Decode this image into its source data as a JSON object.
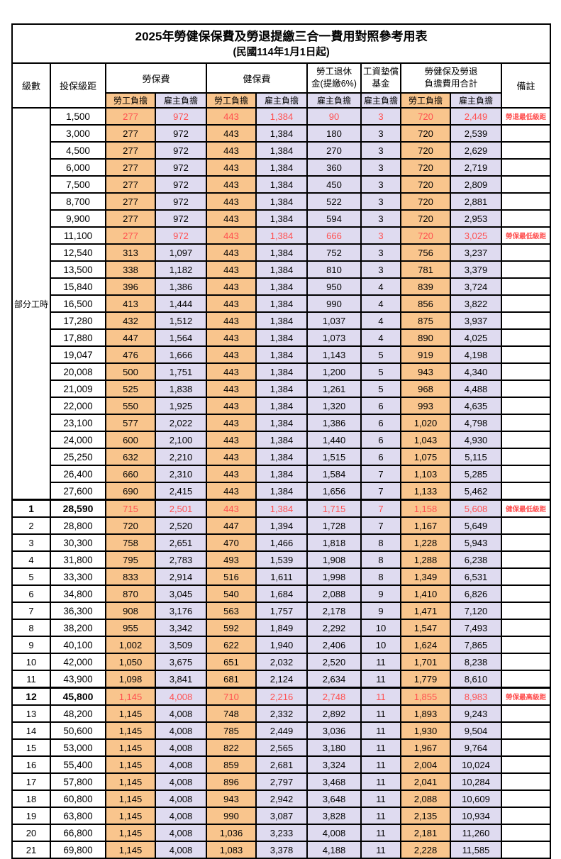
{
  "title": "2025年勞健保保費及勞退提繳三合一費用對照參考用表",
  "subtitle": "(民國114年1月1日起)",
  "colors": {
    "employee_bg": "#F9C58D",
    "employer_bg": "#DFDBF0",
    "highlight_red": "#FF5050",
    "border": "#000000"
  },
  "table": {
    "headers": {
      "level": "級數",
      "salary": "投保級距",
      "labor": "勞保費",
      "health": "健保費",
      "pension": "勞工退休\n金(提繳6%)",
      "wage_fund": "工資墊償\n基金",
      "total": "勞健保及勞退\n負擔費用合計",
      "note": "備註",
      "employee": "勞工負擔",
      "employer": "雇主負擔"
    },
    "part_time_label": "部分工時",
    "part_time_span": 23,
    "rows": [
      {
        "level": "",
        "salary": "1,500",
        "values": [
          "277",
          "972",
          "443",
          "1,384",
          "90",
          "3",
          "720",
          "2,449"
        ],
        "note": "勞退最低級距",
        "red": true
      },
      {
        "level": "",
        "salary": "3,000",
        "values": [
          "277",
          "972",
          "443",
          "1,384",
          "180",
          "3",
          "720",
          "2,539"
        ],
        "note": ""
      },
      {
        "level": "",
        "salary": "4,500",
        "values": [
          "277",
          "972",
          "443",
          "1,384",
          "270",
          "3",
          "720",
          "2,629"
        ],
        "note": ""
      },
      {
        "level": "",
        "salary": "6,000",
        "values": [
          "277",
          "972",
          "443",
          "1,384",
          "360",
          "3",
          "720",
          "2,719"
        ],
        "note": ""
      },
      {
        "level": "",
        "salary": "7,500",
        "values": [
          "277",
          "972",
          "443",
          "1,384",
          "450",
          "3",
          "720",
          "2,809"
        ],
        "note": ""
      },
      {
        "level": "",
        "salary": "8,700",
        "values": [
          "277",
          "972",
          "443",
          "1,384",
          "522",
          "3",
          "720",
          "2,881"
        ],
        "note": ""
      },
      {
        "level": "",
        "salary": "9,900",
        "values": [
          "277",
          "972",
          "443",
          "1,384",
          "594",
          "3",
          "720",
          "2,953"
        ],
        "note": ""
      },
      {
        "level": "",
        "salary": "11,100",
        "values": [
          "277",
          "972",
          "443",
          "1,384",
          "666",
          "3",
          "720",
          "3,025"
        ],
        "note": "勞保最低級距",
        "red": true
      },
      {
        "level": "",
        "salary": "12,540",
        "values": [
          "313",
          "1,097",
          "443",
          "1,384",
          "752",
          "3",
          "756",
          "3,237"
        ],
        "note": ""
      },
      {
        "level": "",
        "salary": "13,500",
        "values": [
          "338",
          "1,182",
          "443",
          "1,384",
          "810",
          "3",
          "781",
          "3,379"
        ],
        "note": ""
      },
      {
        "level": "",
        "salary": "15,840",
        "values": [
          "396",
          "1,386",
          "443",
          "1,384",
          "950",
          "4",
          "839",
          "3,724"
        ],
        "note": ""
      },
      {
        "level": "",
        "salary": "16,500",
        "values": [
          "413",
          "1,444",
          "443",
          "1,384",
          "990",
          "4",
          "856",
          "3,822"
        ],
        "note": ""
      },
      {
        "level": "",
        "salary": "17,280",
        "values": [
          "432",
          "1,512",
          "443",
          "1,384",
          "1,037",
          "4",
          "875",
          "3,937"
        ],
        "note": ""
      },
      {
        "level": "",
        "salary": "17,880",
        "values": [
          "447",
          "1,564",
          "443",
          "1,384",
          "1,073",
          "4",
          "890",
          "4,025"
        ],
        "note": ""
      },
      {
        "level": "",
        "salary": "19,047",
        "values": [
          "476",
          "1,666",
          "443",
          "1,384",
          "1,143",
          "5",
          "919",
          "4,198"
        ],
        "note": ""
      },
      {
        "level": "",
        "salary": "20,008",
        "values": [
          "500",
          "1,751",
          "443",
          "1,384",
          "1,200",
          "5",
          "943",
          "4,340"
        ],
        "note": ""
      },
      {
        "level": "",
        "salary": "21,009",
        "values": [
          "525",
          "1,838",
          "443",
          "1,384",
          "1,261",
          "5",
          "968",
          "4,488"
        ],
        "note": ""
      },
      {
        "level": "",
        "salary": "22,000",
        "values": [
          "550",
          "1,925",
          "443",
          "1,384",
          "1,320",
          "6",
          "993",
          "4,635"
        ],
        "note": ""
      },
      {
        "level": "",
        "salary": "23,100",
        "values": [
          "577",
          "2,022",
          "443",
          "1,384",
          "1,386",
          "6",
          "1,020",
          "4,798"
        ],
        "note": ""
      },
      {
        "level": "",
        "salary": "24,000",
        "values": [
          "600",
          "2,100",
          "443",
          "1,384",
          "1,440",
          "6",
          "1,043",
          "4,930"
        ],
        "note": ""
      },
      {
        "level": "",
        "salary": "25,250",
        "values": [
          "632",
          "2,210",
          "443",
          "1,384",
          "1,515",
          "6",
          "1,075",
          "5,115"
        ],
        "note": ""
      },
      {
        "level": "",
        "salary": "26,400",
        "values": [
          "660",
          "2,310",
          "443",
          "1,384",
          "1,584",
          "7",
          "1,103",
          "5,285"
        ],
        "note": ""
      },
      {
        "level": "",
        "salary": "27,600",
        "values": [
          "690",
          "2,415",
          "443",
          "1,384",
          "1,656",
          "7",
          "1,133",
          "5,462"
        ],
        "note": ""
      },
      {
        "level": "1",
        "salary": "28,590",
        "values": [
          "715",
          "2,501",
          "443",
          "1,384",
          "1,715",
          "7",
          "1,158",
          "5,608"
        ],
        "note": "健保最低級距",
        "red": true,
        "bold": true,
        "thick_top": true
      },
      {
        "level": "2",
        "salary": "28,800",
        "values": [
          "720",
          "2,520",
          "447",
          "1,394",
          "1,728",
          "7",
          "1,167",
          "5,649"
        ],
        "note": ""
      },
      {
        "level": "3",
        "salary": "30,300",
        "values": [
          "758",
          "2,651",
          "470",
          "1,466",
          "1,818",
          "8",
          "1,228",
          "5,943"
        ],
        "note": ""
      },
      {
        "level": "4",
        "salary": "31,800",
        "values": [
          "795",
          "2,783",
          "493",
          "1,539",
          "1,908",
          "8",
          "1,288",
          "6,238"
        ],
        "note": ""
      },
      {
        "level": "5",
        "salary": "33,300",
        "values": [
          "833",
          "2,914",
          "516",
          "1,611",
          "1,998",
          "8",
          "1,349",
          "6,531"
        ],
        "note": ""
      },
      {
        "level": "6",
        "salary": "34,800",
        "values": [
          "870",
          "3,045",
          "540",
          "1,684",
          "2,088",
          "9",
          "1,410",
          "6,826"
        ],
        "note": ""
      },
      {
        "level": "7",
        "salary": "36,300",
        "values": [
          "908",
          "3,176",
          "563",
          "1,757",
          "2,178",
          "9",
          "1,471",
          "7,120"
        ],
        "note": ""
      },
      {
        "level": "8",
        "salary": "38,200",
        "values": [
          "955",
          "3,342",
          "592",
          "1,849",
          "2,292",
          "10",
          "1,547",
          "7,493"
        ],
        "note": ""
      },
      {
        "level": "9",
        "salary": "40,100",
        "values": [
          "1,002",
          "3,509",
          "622",
          "1,940",
          "2,406",
          "10",
          "1,624",
          "7,865"
        ],
        "note": ""
      },
      {
        "level": "10",
        "salary": "42,000",
        "values": [
          "1,050",
          "3,675",
          "651",
          "2,032",
          "2,520",
          "11",
          "1,701",
          "8,238"
        ],
        "note": ""
      },
      {
        "level": "11",
        "salary": "43,900",
        "values": [
          "1,098",
          "3,841",
          "681",
          "2,124",
          "2,634",
          "11",
          "1,779",
          "8,610"
        ],
        "note": ""
      },
      {
        "level": "12",
        "salary": "45,800",
        "values": [
          "1,145",
          "4,008",
          "710",
          "2,216",
          "2,748",
          "11",
          "1,855",
          "8,983"
        ],
        "note": "勞保最高級距",
        "red": true,
        "bold": true,
        "thick_top": true
      },
      {
        "level": "13",
        "salary": "48,200",
        "values": [
          "1,145",
          "4,008",
          "748",
          "2,332",
          "2,892",
          "11",
          "1,893",
          "9,243"
        ],
        "note": ""
      },
      {
        "level": "14",
        "salary": "50,600",
        "values": [
          "1,145",
          "4,008",
          "785",
          "2,449",
          "3,036",
          "11",
          "1,930",
          "9,504"
        ],
        "note": ""
      },
      {
        "level": "15",
        "salary": "53,000",
        "values": [
          "1,145",
          "4,008",
          "822",
          "2,565",
          "3,180",
          "11",
          "1,967",
          "9,764"
        ],
        "note": ""
      },
      {
        "level": "16",
        "salary": "55,400",
        "values": [
          "1,145",
          "4,008",
          "859",
          "2,681",
          "3,324",
          "11",
          "2,004",
          "10,024"
        ],
        "note": ""
      },
      {
        "level": "17",
        "salary": "57,800",
        "values": [
          "1,145",
          "4,008",
          "896",
          "2,797",
          "3,468",
          "11",
          "2,041",
          "10,284"
        ],
        "note": ""
      },
      {
        "level": "18",
        "salary": "60,800",
        "values": [
          "1,145",
          "4,008",
          "943",
          "2,942",
          "3,648",
          "11",
          "2,088",
          "10,609"
        ],
        "note": ""
      },
      {
        "level": "19",
        "salary": "63,800",
        "values": [
          "1,145",
          "4,008",
          "990",
          "3,087",
          "3,828",
          "11",
          "2,135",
          "10,934"
        ],
        "note": ""
      },
      {
        "level": "20",
        "salary": "66,800",
        "values": [
          "1,145",
          "4,008",
          "1,036",
          "3,233",
          "4,008",
          "11",
          "2,181",
          "11,260"
        ],
        "note": ""
      },
      {
        "level": "21",
        "salary": "69,800",
        "values": [
          "1,145",
          "4,008",
          "1,083",
          "3,378",
          "4,188",
          "11",
          "2,228",
          "11,585"
        ],
        "note": ""
      }
    ]
  }
}
